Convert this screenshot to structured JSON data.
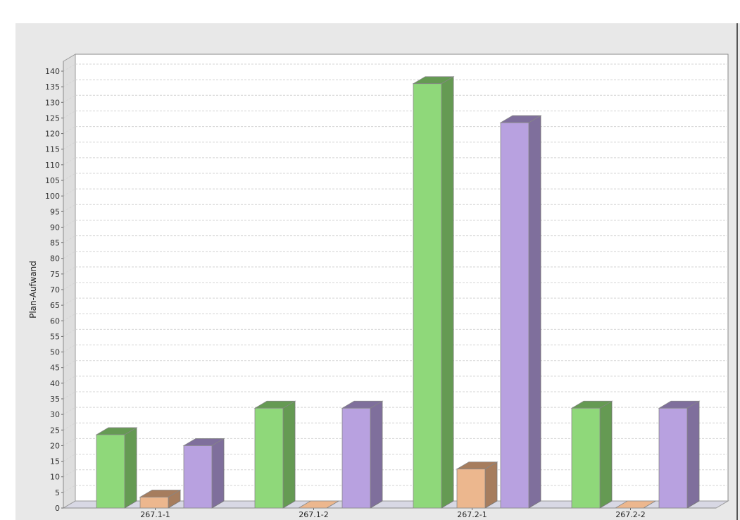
{
  "chart_data": {
    "type": "bar",
    "style": "3d-clustered",
    "title": "",
    "xlabel": "",
    "ylabel": "Plan-Aufwand",
    "ylim": [
      0,
      140
    ],
    "ytick_step": 5,
    "grid": true,
    "legend": "none",
    "categories": [
      "267.1-1",
      "267.1-2",
      "267.2-1",
      "267.2-2"
    ],
    "series": [
      {
        "color": "#8fd87a",
        "side_color": "#659a53",
        "values": [
          23.5,
          32,
          136,
          32
        ]
      },
      {
        "color": "#ecb78e",
        "side_color": "#a67d5e",
        "values": [
          3.5,
          0,
          12.5,
          0
        ]
      },
      {
        "color": "#b8a1e0",
        "side_color": "#7f6f9c",
        "values": [
          20,
          32,
          123.5,
          32
        ]
      }
    ]
  }
}
